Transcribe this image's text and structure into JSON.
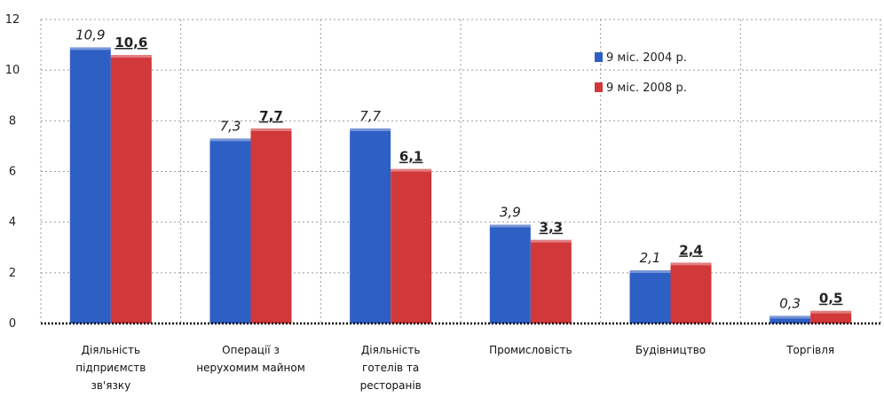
{
  "chart_data": {
    "type": "bar",
    "title": "",
    "xlabel": "",
    "ylabel": "",
    "ylim": [
      0,
      12
    ],
    "yticks": [
      "0",
      "2",
      "4",
      "6",
      "8",
      "10",
      "12"
    ],
    "grid": true,
    "legend_position": "top-right",
    "categories": [
      "Діяльність підприємств зв'язку",
      "Операції з нерухомим майном",
      "Діяльність готелів та ресторанів",
      "Промисловість",
      "Будівництво",
      "Торгівля"
    ],
    "series": [
      {
        "name": "9 міс. 2004 р.",
        "color": "#2e5fc4",
        "values": [
          10.9,
          7.3,
          7.7,
          3.9,
          2.1,
          0.3
        ],
        "labels": [
          "10,9",
          "7,3",
          "7,7",
          "3,9",
          "2,1",
          "0,3"
        ]
      },
      {
        "name": "9 міс. 2008 р.",
        "color": "#d1383a",
        "values": [
          10.6,
          7.7,
          6.1,
          3.3,
          2.4,
          0.5
        ],
        "labels": [
          "10,6",
          "7,7",
          "6,1",
          "3,3",
          "2,4",
          "0,5"
        ]
      }
    ]
  }
}
